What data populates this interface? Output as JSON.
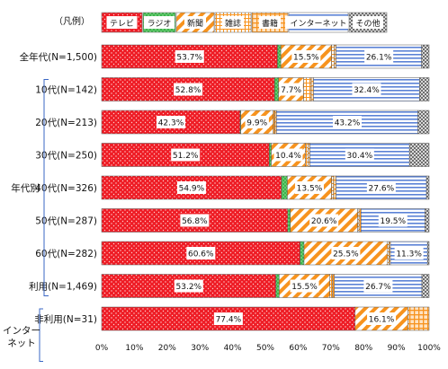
{
  "chart_data": {
    "type": "bar",
    "stacked": true,
    "orientation": "horizontal",
    "legend_title": "（凡例）",
    "legend_position": "top",
    "group_labels": [
      {
        "label": "年代別",
        "rows": [
          1,
          7
        ]
      },
      {
        "label": "インターネット",
        "rows": [
          8,
          9
        ]
      }
    ],
    "categories": [
      "全年代(N=1,500)",
      "10代(N=142)",
      "20代(N=213)",
      "30代(N=250)",
      "40代(N=326)",
      "50代(N=287)",
      "60代(N=282)",
      "利用(N=1,469)",
      "非利用(N=31)"
    ],
    "series": [
      {
        "name": "テレビ",
        "color": "#ee1c25",
        "pattern": "dots",
        "values": [
          53.7,
          52.8,
          42.3,
          51.2,
          54.9,
          56.8,
          60.6,
          53.2,
          77.4
        ]
      },
      {
        "name": "ラジオ",
        "color": "#3cb44b",
        "pattern": "dots",
        "values": [
          1.0,
          1.2,
          0.2,
          0.6,
          1.8,
          0.8,
          1.2,
          1.0,
          0.0
        ]
      },
      {
        "name": "新聞",
        "color": "#f7931e",
        "pattern": "diagonal",
        "values": [
          15.5,
          7.7,
          9.9,
          10.4,
          13.5,
          20.6,
          25.5,
          15.5,
          16.1
        ]
      },
      {
        "name": "雑誌",
        "color": "#f7931e",
        "pattern": "grid",
        "values": [
          0.8,
          2.3,
          0.5,
          0.8,
          0.6,
          0.4,
          0.5,
          0.8,
          0.0
        ]
      },
      {
        "name": "書籍",
        "color": "#f7931e",
        "pattern": "grid-fine",
        "values": [
          0.6,
          0.7,
          0.5,
          0.6,
          0.8,
          0.6,
          0.4,
          0.6,
          6.5
        ]
      },
      {
        "name": "インターネット",
        "color": "#3a67c4",
        "pattern": "hlines",
        "values": [
          26.1,
          32.4,
          43.2,
          30.4,
          27.6,
          19.5,
          11.3,
          26.7,
          0.0
        ]
      },
      {
        "name": "その他",
        "color": "#888888",
        "pattern": "check",
        "values": [
          2.3,
          2.9,
          3.4,
          6.0,
          0.8,
          1.3,
          0.5,
          2.2,
          0.0
        ]
      }
    ],
    "data_labels_for": [
      "テレビ",
      "新聞",
      "インターネット"
    ],
    "xlim": [
      0,
      100
    ],
    "x_ticks": [
      "0%",
      "10%",
      "20%",
      "30%",
      "40%",
      "50%",
      "60%",
      "70%",
      "80%",
      "90%",
      "100%"
    ],
    "value_suffix": "%",
    "grid": false
  }
}
